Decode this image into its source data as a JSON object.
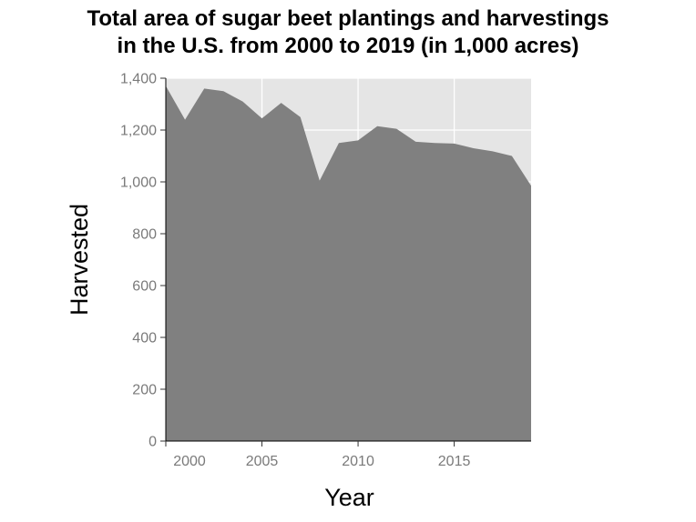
{
  "chart_data": {
    "type": "area",
    "title_lines": [
      "Total area of sugar beet plantings and harvestings",
      "in the U.S. from 2000 to 2019 (in 1,000 acres)"
    ],
    "xlabel": "Year",
    "ylabel": "Harvested",
    "xlim": [
      2000,
      2019
    ],
    "ylim": [
      0,
      1400
    ],
    "x_ticks": [
      2000,
      2005,
      2010,
      2015
    ],
    "x_tick_labels": [
      "2000",
      "2005",
      "2010",
      "2015"
    ],
    "y_ticks": [
      0,
      200,
      400,
      600,
      800,
      1000,
      1200,
      1400
    ],
    "y_tick_labels": [
      "0",
      "200",
      "400",
      "600",
      "800",
      "1,000",
      "1,200",
      "1,400"
    ],
    "grid": true,
    "series": [
      {
        "x": [
          2000,
          2001,
          2002,
          2003,
          2004,
          2005,
          2006,
          2007,
          2008,
          2009,
          2010,
          2011,
          2012,
          2013,
          2014,
          2015,
          2016,
          2017,
          2018,
          2019
        ],
        "values": [
          1370,
          1240,
          1360,
          1350,
          1310,
          1245,
          1305,
          1250,
          1005,
          1150,
          1160,
          1215,
          1205,
          1155,
          1150,
          1148,
          1130,
          1118,
          1100,
          985
        ],
        "color": "#808080"
      }
    ],
    "plot_background": "#e5e5e5",
    "grid_color": "#ffffff"
  }
}
